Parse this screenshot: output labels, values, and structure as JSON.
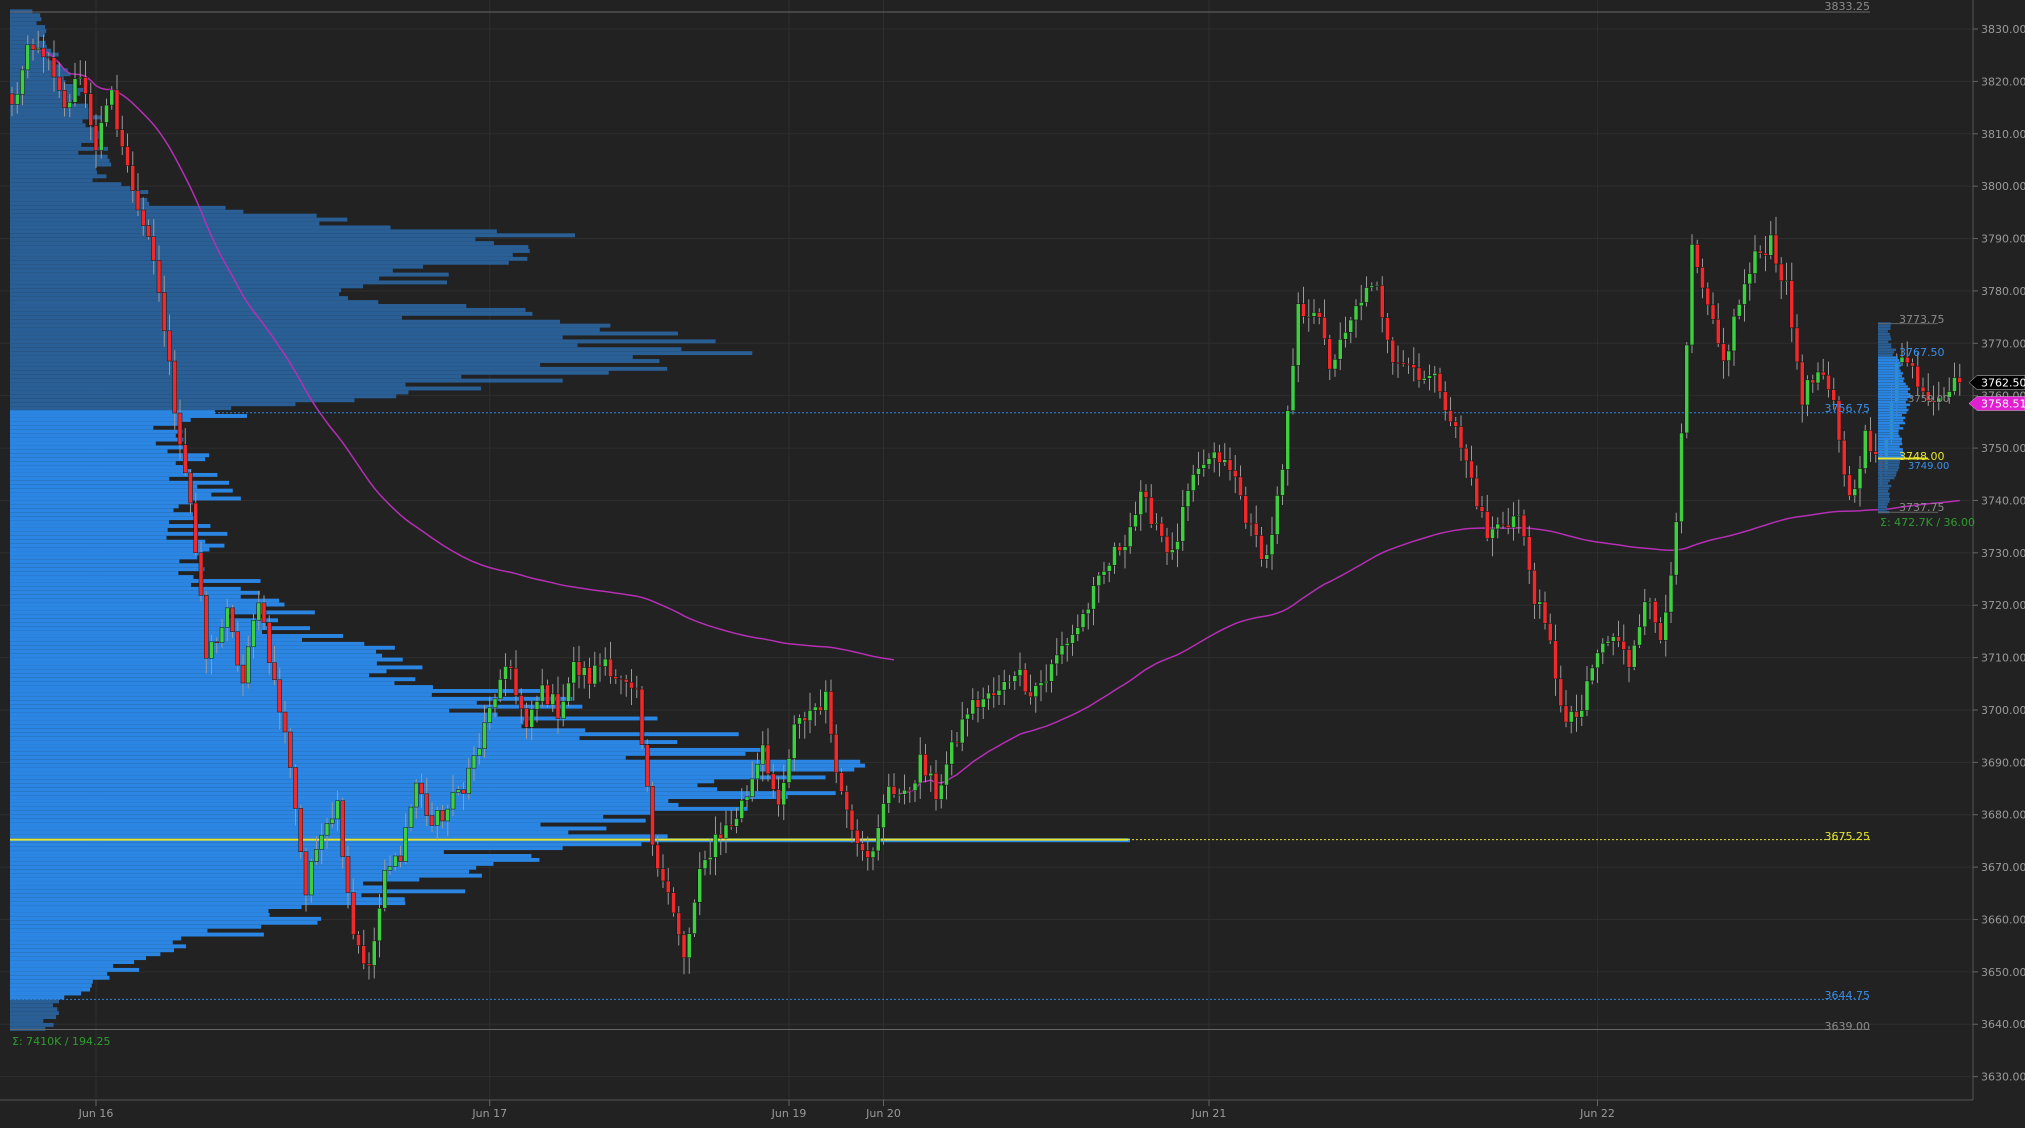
{
  "chart_data": {
    "type": "candlestick",
    "title": "",
    "y_axis": {
      "side": "right",
      "range": [
        3625,
        3835
      ],
      "ticks": [
        3630,
        3640,
        3650,
        3660,
        3670,
        3680,
        3690,
        3700,
        3710,
        3720,
        3730,
        3740,
        3750,
        3760,
        3770,
        3780,
        3790,
        3800,
        3810,
        3820,
        3830
      ],
      "tick_labels": [
        "3630.00",
        "3640.00",
        "3650.00",
        "3660.00",
        "3670.00",
        "3680.00",
        "3690.00",
        "3700.00",
        "3710.00",
        "3720.00",
        "3730.00",
        "3740.00",
        "3750.00",
        "3760.00",
        "3770.00",
        "3780.00",
        "3790.00",
        "3800.00",
        "3810.00",
        "3820.00",
        "3830.00"
      ]
    },
    "x_axis": {
      "date_labels": [
        {
          "label": "Jun 16",
          "bar": 16
        },
        {
          "label": "Jun 17",
          "bar": 91
        },
        {
          "label": "Jun 19",
          "bar": 148
        },
        {
          "label": "Jun 20",
          "bar": 166
        },
        {
          "label": "Jun 21",
          "bar": 228
        },
        {
          "label": "Jun 22",
          "bar": 302
        }
      ]
    },
    "grid": true,
    "candles": {
      "count": 372,
      "path_note": "close path",
      "path": [
        [
          0,
          3815
        ],
        [
          3,
          3825
        ],
        [
          6,
          3826
        ],
        [
          10,
          3814
        ],
        [
          13,
          3822
        ],
        [
          16,
          3808
        ],
        [
          19,
          3817
        ],
        [
          22,
          3803
        ],
        [
          25,
          3793
        ],
        [
          28,
          3780
        ],
        [
          31,
          3758
        ],
        [
          34,
          3740
        ],
        [
          37,
          3710
        ],
        [
          41,
          3718
        ],
        [
          44,
          3705
        ],
        [
          47,
          3722
        ],
        [
          50,
          3705
        ],
        [
          53,
          3690
        ],
        [
          56,
          3665
        ],
        [
          59,
          3678
        ],
        [
          62,
          3682
        ],
        [
          65,
          3658
        ],
        [
          68,
          3650
        ],
        [
          71,
          3668
        ],
        [
          74,
          3673
        ],
        [
          77,
          3686
        ],
        [
          80,
          3678
        ],
        [
          83,
          3681
        ],
        [
          86,
          3686
        ],
        [
          89,
          3693
        ],
        [
          92,
          3703
        ],
        [
          95,
          3708
        ],
        [
          98,
          3696
        ],
        [
          101,
          3704
        ],
        [
          104,
          3700
        ],
        [
          107,
          3708
        ],
        [
          110,
          3706
        ],
        [
          113,
          3710
        ],
        [
          116,
          3705
        ],
        [
          119,
          3702
        ],
        [
          122,
          3675
        ],
        [
          125,
          3665
        ],
        [
          128,
          3652
        ],
        [
          131,
          3668
        ],
        [
          134,
          3676
        ],
        [
          137,
          3678
        ],
        [
          140,
          3684
        ],
        [
          143,
          3694
        ],
        [
          146,
          3680
        ],
        [
          149,
          3696
        ],
        [
          152,
          3700
        ],
        [
          155,
          3702
        ],
        [
          158,
          3684
        ],
        [
          161,
          3676
        ],
        [
          164,
          3672
        ],
        [
          167,
          3686
        ],
        [
          170,
          3683
        ],
        [
          173,
          3690
        ],
        [
          176,
          3684
        ],
        [
          179,
          3692
        ],
        [
          182,
          3700
        ],
        [
          185,
          3702
        ],
        [
          188,
          3703
        ],
        [
          191,
          3708
        ],
        [
          194,
          3704
        ],
        [
          197,
          3706
        ],
        [
          200,
          3712
        ],
        [
          203,
          3716
        ],
        [
          206,
          3722
        ],
        [
          209,
          3728
        ],
        [
          212,
          3733
        ],
        [
          215,
          3740
        ],
        [
          218,
          3736
        ],
        [
          221,
          3729
        ],
        [
          224,
          3741
        ],
        [
          227,
          3747
        ],
        [
          230,
          3748
        ],
        [
          233,
          3744
        ],
        [
          236,
          3734
        ],
        [
          239,
          3729
        ],
        [
          242,
          3745
        ],
        [
          245,
          3776
        ],
        [
          248,
          3777
        ],
        [
          251,
          3766
        ],
        [
          254,
          3771
        ],
        [
          257,
          3779
        ],
        [
          260,
          3780
        ],
        [
          263,
          3768
        ],
        [
          266,
          3766
        ],
        [
          269,
          3764
        ],
        [
          272,
          3762
        ],
        [
          275,
          3753
        ],
        [
          278,
          3744
        ],
        [
          281,
          3733
        ],
        [
          284,
          3736
        ],
        [
          287,
          3737
        ],
        [
          290,
          3722
        ],
        [
          293,
          3712
        ],
        [
          296,
          3697
        ],
        [
          299,
          3700
        ],
        [
          302,
          3711
        ],
        [
          305,
          3714
        ],
        [
          308,
          3709
        ],
        [
          311,
          3722
        ],
        [
          314,
          3714
        ],
        [
          317,
          3734
        ],
        [
          320,
          3787
        ],
        [
          323,
          3776
        ],
        [
          326,
          3766
        ],
        [
          329,
          3778
        ],
        [
          332,
          3786
        ],
        [
          335,
          3790
        ],
        [
          338,
          3780
        ],
        [
          341,
          3760
        ],
        [
          344,
          3764
        ],
        [
          347,
          3758
        ],
        [
          350,
          3740
        ],
        [
          353,
          3752
        ],
        [
          356,
          3745
        ],
        [
          359,
          3768
        ],
        [
          362,
          3765
        ],
        [
          365,
          3760
        ],
        [
          371,
          3762.5
        ]
      ]
    },
    "main_profile": {
      "poc": 3675.25,
      "value_area_high": 3756.75,
      "value_area_low": 3644.75,
      "high": 3833.25,
      "low": 3639.0,
      "summary": "Σ: 7410K / 194.25"
    },
    "session_profile": {
      "high": 3773.75,
      "low": 3737.75,
      "value_area_high": 3767.5,
      "value_area_low": 3748.0,
      "poc": 3748.0,
      "summary": "Σ: 472.7K / 36.00"
    },
    "labels": {
      "high_label": "3833.25",
      "poc_label": "3675.25",
      "vah_label": "3756.75",
      "val_label": "3644.75",
      "low_label": "3639.00",
      "main_summary": "Σ: 7410K / 194.25",
      "sess_high": "3773.75",
      "sess_vah": "3767.50",
      "sess_poc": "3748.00",
      "sess_low": "3737.75",
      "sess_summary": "Σ: 472.7K / 36.00",
      "sess_mid1": "3759.00",
      "sess_mid2": "3749.00"
    },
    "price_tags": [
      {
        "value": 3762.5,
        "label": "3762.50",
        "color": "#000000",
        "text_color": "#ffffff"
      },
      {
        "value": 3758.51,
        "label": "3758.51",
        "color": "#e01fd0",
        "text_color": "#ffffff"
      }
    ],
    "colors": {
      "background": "#222222",
      "grid": "#2e2e2e",
      "up": "#3fce3f",
      "down": "#f02a2a",
      "wick": "#9a9a9a",
      "profile_upper": "#2a5f96",
      "profile_va": "#2b86e3",
      "poc": "#e6e62e",
      "vwap": "#b52fb5",
      "axis_text": "#9a9a9a",
      "summary_text": "#2e9c2e"
    }
  }
}
